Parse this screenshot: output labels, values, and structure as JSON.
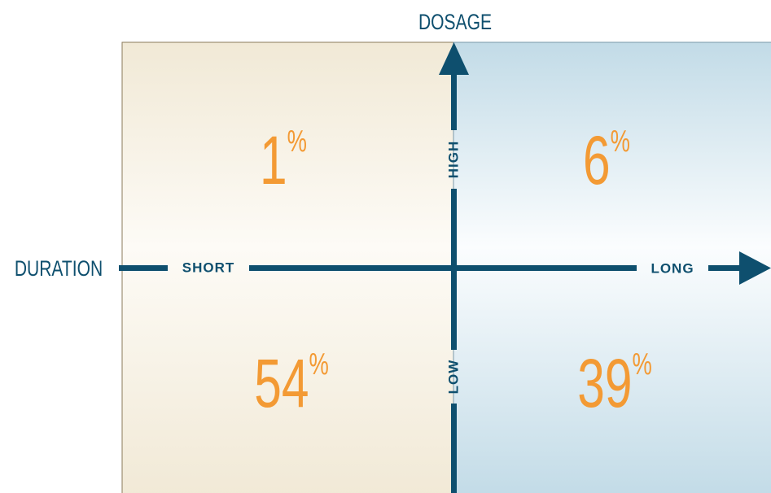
{
  "axes": {
    "y_title": "DOSAGE",
    "x_title": "DURATION",
    "x_low": "SHORT",
    "x_high": "LONG",
    "y_high": "HIGH",
    "y_low": "LOW"
  },
  "quadrants": [
    {
      "value": "1",
      "unit": "%"
    },
    {
      "value": "6",
      "unit": "%"
    },
    {
      "value": "54",
      "unit": "%"
    },
    {
      "value": "39",
      "unit": "%"
    }
  ]
}
